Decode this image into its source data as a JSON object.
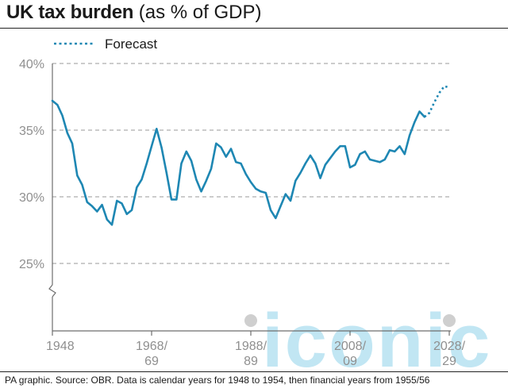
{
  "header": {
    "title_bold": "UK tax burden",
    "title_light": " (as % of GDP)"
  },
  "footer": {
    "source": "PA graphic. Source: OBR. Data is calendar years for 1948 to 1954, then financial years from 1955/56"
  },
  "watermark": "iconic",
  "colors": {
    "line": "#1e87b3",
    "grid": "#9a9a9a",
    "axis_text": "#8f8f8f",
    "marker": "#cfcfcf",
    "watermark": "#8fd3ea"
  },
  "chart_data": {
    "type": "line",
    "title": "UK tax burden (as % of GDP)",
    "xlabel": "",
    "ylabel": "",
    "ylim": [
      20,
      40
    ],
    "xlim": [
      1948,
      2029
    ],
    "y_axis_break": true,
    "grid": "horizontal-dashed",
    "legend_position": "top-left",
    "y_ticks": [
      {
        "value": 25,
        "label": "25%"
      },
      {
        "value": 30,
        "label": "30%"
      },
      {
        "value": 35,
        "label": "35%"
      },
      {
        "value": 40,
        "label": "40%"
      }
    ],
    "x_ticks": [
      {
        "value": 1948,
        "line1": "1948",
        "line2": ""
      },
      {
        "value": 1968,
        "line1": "1968/",
        "line2": "69"
      },
      {
        "value": 1988,
        "line1": "1988/",
        "line2": "89"
      },
      {
        "value": 2008,
        "line1": "2008/",
        "line2": "09"
      },
      {
        "value": 2028,
        "line1": "2028/",
        "line2": "29"
      }
    ],
    "series": [
      {
        "style": "solid",
        "x": [
          1948,
          1949,
          1950,
          1951,
          1952,
          1953,
          1954,
          1955,
          1956,
          1957,
          1958,
          1959,
          1960,
          1961,
          1962,
          1963,
          1964,
          1965,
          1966,
          1967,
          1968,
          1969,
          1970,
          1971,
          1972,
          1973,
          1974,
          1975,
          1976,
          1977,
          1978,
          1979,
          1980,
          1981,
          1982,
          1983,
          1984,
          1985,
          1986,
          1987,
          1988,
          1989,
          1990,
          1991,
          1992,
          1993,
          1994,
          1995,
          1996,
          1997,
          1998,
          1999,
          2000,
          2001,
          2002,
          2003,
          2004,
          2005,
          2006,
          2007,
          2008,
          2009,
          2010,
          2011,
          2012,
          2013,
          2014,
          2015,
          2016,
          2017,
          2018,
          2019,
          2020,
          2021,
          2022,
          2023
        ],
        "y": [
          37.2,
          36.9,
          36.1,
          34.8,
          34.0,
          31.6,
          30.9,
          29.6,
          29.3,
          28.9,
          29.4,
          28.3,
          27.9,
          29.7,
          29.5,
          28.7,
          29.0,
          30.7,
          31.3,
          32.5,
          33.8,
          35.1,
          33.7,
          31.8,
          29.8,
          29.8,
          32.5,
          33.4,
          32.7,
          31.3,
          30.4,
          31.2,
          32.1,
          34.0,
          33.7,
          33.0,
          33.6,
          32.6,
          32.5,
          31.7,
          31.1,
          30.6,
          30.4,
          30.3,
          29.0,
          28.4,
          29.3,
          30.2,
          29.7,
          31.2,
          31.8,
          32.5,
          33.1,
          32.5,
          31.4,
          32.4,
          32.9,
          33.4,
          33.8,
          33.8,
          32.2,
          32.4,
          33.2,
          33.4,
          32.8,
          32.7,
          32.6,
          32.8,
          33.5,
          33.4,
          33.8,
          33.2,
          34.6,
          35.6,
          36.4,
          36.0
        ]
      },
      {
        "name": "Forecast",
        "style": "dotted",
        "x": [
          2023,
          2024,
          2025,
          2026,
          2027,
          2028
        ],
        "y": [
          36.0,
          36.3,
          37.1,
          37.8,
          38.3,
          38.2
        ]
      }
    ]
  }
}
